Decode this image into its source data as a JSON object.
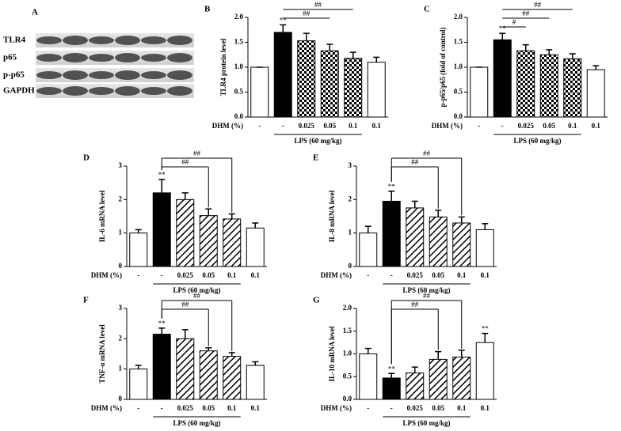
{
  "blot": {
    "label": "A",
    "rows": [
      "TLR4",
      "p65",
      "p-p65",
      "GAPDH"
    ]
  },
  "chart_data": [
    {
      "type": "bar",
      "panel": "B",
      "ylabel": "TLR4 protein level",
      "x_label": "DHM (%)",
      "group_label": "LPS (60 mg/kg)",
      "categories": [
        "-",
        "-",
        "0.025",
        "0.05",
        "0.1",
        "0.1"
      ],
      "values": [
        1.0,
        1.7,
        1.53,
        1.33,
        1.18,
        1.1
      ],
      "errors": [
        0,
        0.15,
        0.15,
        0.13,
        0.12,
        0.1
      ],
      "fills": [
        "white",
        "black",
        "checker",
        "checker",
        "checker",
        "white"
      ],
      "stars": [
        null,
        "**",
        null,
        null,
        null,
        null
      ],
      "brackets": [
        {
          "from": 1,
          "to": 4,
          "label": "##"
        },
        {
          "from": 1,
          "to": 3,
          "label": "##"
        }
      ],
      "bracket_drop": false,
      "ylim": [
        0,
        2.0
      ],
      "yticks": [
        {
          "value": 0,
          "label": "0.0"
        },
        {
          "value": 0.5,
          "label": "0.5"
        },
        {
          "value": 1,
          "label": "1.0"
        },
        {
          "value": 1.5,
          "label": "1.5"
        },
        {
          "value": 2,
          "label": "2.0"
        }
      ]
    },
    {
      "type": "bar",
      "panel": "C",
      "ylabel": "p-p65/p65 (fold of control)",
      "x_label": "DHM (%)",
      "group_label": "LPS (60 mg/kg)",
      "categories": [
        "-",
        "-",
        "0.025",
        "0.05",
        "0.1",
        "0.1"
      ],
      "values": [
        1.0,
        1.55,
        1.33,
        1.25,
        1.17,
        0.95
      ],
      "errors": [
        0,
        0.13,
        0.12,
        0.1,
        0.1,
        0.08
      ],
      "fills": [
        "white",
        "black",
        "checker",
        "checker",
        "checker",
        "white"
      ],
      "stars": [
        null,
        "**",
        null,
        null,
        null,
        null
      ],
      "brackets": [
        {
          "from": 1,
          "to": 4,
          "label": "##"
        },
        {
          "from": 1,
          "to": 3,
          "label": "##"
        },
        {
          "from": 1,
          "to": 2,
          "label": "#"
        }
      ],
      "bracket_drop": false,
      "ylim": [
        0,
        2.0
      ],
      "yticks": [
        {
          "value": 0,
          "label": "0.0"
        },
        {
          "value": 0.5,
          "label": "0.5"
        },
        {
          "value": 1,
          "label": "1.0"
        },
        {
          "value": 1.5,
          "label": "1.5"
        },
        {
          "value": 2,
          "label": "2.0"
        }
      ]
    },
    {
      "type": "bar",
      "panel": "D",
      "ylabel": "IL-6 mRNA level",
      "x_label": "DHM (%)",
      "group_label": "LPS (60 mg/kg)",
      "categories": [
        "-",
        "-",
        "0.025",
        "0.05",
        "0.1",
        "0.1"
      ],
      "values": [
        1.0,
        2.2,
        2.0,
        1.52,
        1.42,
        1.15
      ],
      "errors": [
        0.1,
        0.4,
        0.2,
        0.2,
        0.15,
        0.15
      ],
      "fills": [
        "white",
        "black",
        "hatch",
        "hatch",
        "hatch",
        "white"
      ],
      "stars": [
        null,
        "**",
        null,
        null,
        null,
        null
      ],
      "brackets": [
        {
          "from": 1,
          "to": 4,
          "label": "##"
        },
        {
          "from": 1,
          "to": 3,
          "label": "##"
        }
      ],
      "bracket_drop": true,
      "ylim": [
        0,
        3
      ],
      "yticks": [
        0,
        1,
        2,
        3
      ]
    },
    {
      "type": "bar",
      "panel": "E",
      "ylabel": "IL-8 mRNA level",
      "x_label": "DHM (%)",
      "group_label": "LPS (60 mg/kg)",
      "categories": [
        "-",
        "-",
        "0.025",
        "0.05",
        "0.1",
        "0.1"
      ],
      "values": [
        1.0,
        1.95,
        1.75,
        1.48,
        1.3,
        1.1
      ],
      "errors": [
        0.2,
        0.3,
        0.2,
        0.2,
        0.18,
        0.18
      ],
      "fills": [
        "white",
        "black",
        "hatch",
        "hatch",
        "hatch",
        "white"
      ],
      "stars": [
        null,
        "**",
        null,
        null,
        null,
        null
      ],
      "brackets": [
        {
          "from": 1,
          "to": 4,
          "label": "##"
        },
        {
          "from": 1,
          "to": 3,
          "label": "##"
        }
      ],
      "bracket_drop": true,
      "ylim": [
        0,
        3
      ],
      "yticks": [
        0,
        1,
        2,
        3
      ]
    },
    {
      "type": "bar",
      "panel": "F",
      "ylabel": "TNF-α mRNA level",
      "x_label": "DHM (%)",
      "group_label": "LPS (60 mg/kg)",
      "categories": [
        "-",
        "-",
        "0.025",
        "0.05",
        "0.1",
        "0.1"
      ],
      "values": [
        1.0,
        2.15,
        2.0,
        1.6,
        1.42,
        1.12
      ],
      "errors": [
        0.12,
        0.2,
        0.3,
        0.1,
        0.12,
        0.12
      ],
      "fills": [
        "white",
        "black",
        "hatch",
        "hatch",
        "hatch",
        "white"
      ],
      "stars": [
        null,
        "**",
        null,
        null,
        null,
        null
      ],
      "brackets": [
        {
          "from": 1,
          "to": 4,
          "label": "##"
        },
        {
          "from": 1,
          "to": 3,
          "label": "##"
        }
      ],
      "bracket_drop": true,
      "ylim": [
        0,
        3
      ],
      "yticks": [
        0,
        1,
        2,
        3
      ]
    },
    {
      "type": "bar",
      "panel": "G",
      "ylabel": "IL-10 mRNA level",
      "x_label": "DHM (%)",
      "group_label": "LPS (60 mg/kg)",
      "categories": [
        "-",
        "-",
        "0.025",
        "0.05",
        "0.1",
        "0.1"
      ],
      "values": [
        1.0,
        0.47,
        0.58,
        0.88,
        0.93,
        1.25
      ],
      "errors": [
        0.12,
        0.1,
        0.13,
        0.17,
        0.15,
        0.2
      ],
      "fills": [
        "white",
        "black",
        "hatch",
        "hatch",
        "hatch",
        "white"
      ],
      "stars": [
        null,
        "**",
        null,
        null,
        null,
        "**"
      ],
      "brackets": [
        {
          "from": 1,
          "to": 4,
          "label": "##"
        },
        {
          "from": 1,
          "to": 3,
          "label": "##"
        }
      ],
      "bracket_drop": true,
      "ylim": [
        0,
        2.0
      ],
      "yticks": [
        {
          "value": 0,
          "label": "0.0"
        },
        {
          "value": 0.5,
          "label": "0.5"
        },
        {
          "value": 1,
          "label": "1.0"
        },
        {
          "value": 1.5,
          "label": "1.5"
        },
        {
          "value": 2,
          "label": "2.0"
        }
      ]
    }
  ]
}
